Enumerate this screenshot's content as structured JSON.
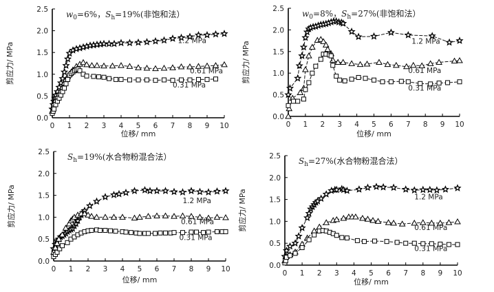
{
  "chart_data": [
    {
      "type": "line",
      "title": "w0=6%, Sh=19%(非饱和法)",
      "title_parts": {
        "var1": "w",
        "sub1": "0",
        "val1": "=6%，",
        "var2": "S",
        "sub2": "h",
        "val2": "=19%(非饱和法）"
      },
      "xlabel": "位移/ mm",
      "ylabel": "剪应力/ MPa",
      "xlim": [
        0,
        10
      ],
      "ylim": [
        0,
        2.5
      ],
      "xticks": [
        "0",
        "1",
        "2",
        "3",
        "4",
        "5",
        "6",
        "7",
        "8",
        "9",
        "10"
      ],
      "yticks": [
        "0.0",
        "0.5",
        "1.0",
        "1.5",
        "2.0",
        "2.5"
      ],
      "grid": false,
      "series": [
        {
          "name": "1.2 MPa",
          "marker": "star",
          "x": [
            0,
            0.05,
            0.1,
            0.15,
            0.2,
            0.3,
            0.4,
            0.5,
            0.6,
            0.7,
            0.8,
            0.9,
            1.0,
            1.2,
            1.4,
            1.6,
            1.8,
            2.0,
            2.2,
            2.4,
            2.6,
            2.8,
            3.0,
            3.3,
            3.6,
            4.0,
            4.5,
            5.0,
            5.5,
            6.0,
            6.5,
            7.0,
            7.5,
            8.0,
            8.5,
            9.0,
            9.5,
            10.0
          ],
          "y": [
            0.2,
            0.3,
            0.38,
            0.45,
            0.52,
            0.6,
            0.7,
            0.8,
            0.9,
            1.05,
            1.2,
            1.35,
            1.48,
            1.55,
            1.58,
            1.6,
            1.62,
            1.64,
            1.66,
            1.67,
            1.68,
            1.69,
            1.7,
            1.7,
            1.7,
            1.72,
            1.72,
            1.73,
            1.74,
            1.76,
            1.78,
            1.82,
            1.84,
            1.86,
            1.9,
            1.9,
            1.92,
            1.93
          ]
        },
        {
          "name": "0.61 MPa",
          "marker": "triangle",
          "x": [
            0,
            0.05,
            0.1,
            0.2,
            0.3,
            0.4,
            0.5,
            0.6,
            0.7,
            0.8,
            0.9,
            1.0,
            1.1,
            1.2,
            1.4,
            1.6,
            1.8,
            2.0,
            2.3,
            2.6,
            3.0,
            3.5,
            4.0,
            4.5,
            5.0,
            5.5,
            6.0,
            6.5,
            7.0,
            7.5,
            8.0,
            8.5,
            9.0,
            9.5,
            10.0
          ],
          "y": [
            0.15,
            0.25,
            0.32,
            0.4,
            0.48,
            0.55,
            0.62,
            0.7,
            0.8,
            0.88,
            0.95,
            1.0,
            1.05,
            1.1,
            1.18,
            1.23,
            1.27,
            1.22,
            1.2,
            1.2,
            1.19,
            1.19,
            1.2,
            1.18,
            1.15,
            1.14,
            1.13,
            1.14,
            1.15,
            1.17,
            1.17,
            1.18,
            1.19,
            1.2,
            1.22
          ]
        },
        {
          "name": "0.31 MPa",
          "marker": "square",
          "x": [
            0,
            0.05,
            0.1,
            0.2,
            0.3,
            0.4,
            0.5,
            0.6,
            0.7,
            0.8,
            0.9,
            1.0,
            1.1,
            1.2,
            1.3,
            1.4,
            1.5,
            1.6,
            1.8,
            2.0,
            2.4,
            2.7,
            3.0,
            3.3,
            3.7,
            4.0,
            4.5,
            5.0,
            5.5,
            6.0,
            6.5,
            7.0,
            7.5,
            8.0,
            8.5,
            9.0,
            9.5
          ],
          "y": [
            0.1,
            0.15,
            0.2,
            0.3,
            0.38,
            0.45,
            0.52,
            0.6,
            0.68,
            0.78,
            0.88,
            0.98,
            1.02,
            1.05,
            1.08,
            1.1,
            1.12,
            1.08,
            1.0,
            0.96,
            0.95,
            0.94,
            0.93,
            0.9,
            0.88,
            0.88,
            0.87,
            0.87,
            0.87,
            0.86,
            0.87,
            0.86,
            0.87,
            0.87,
            0.88,
            0.88,
            0.89
          ]
        }
      ],
      "annotations": [
        {
          "text": "1.2 MPa",
          "x": 7.3,
          "y": 1.72
        },
        {
          "text": "0.61 MPa",
          "x": 8.0,
          "y": 1.02
        },
        {
          "text": "0.31 MPa",
          "x": 7.0,
          "y": 0.7
        }
      ]
    },
    {
      "type": "line",
      "title": "w0=8%, Sh=27%(非饱和法)",
      "title_parts": {
        "var1": "w",
        "sub1": "0",
        "val1": "=8%，",
        "var2": "S",
        "sub2": "h",
        "val2": "=27%(非饱和法）"
      },
      "xlabel": "位移/ mm",
      "ylabel": "剪应力/ MPa",
      "xlim": [
        0,
        10
      ],
      "ylim": [
        0,
        2.5
      ],
      "xticks": [
        "0",
        "1",
        "2",
        "3",
        "4",
        "5",
        "6",
        "7",
        "8",
        "9",
        "10"
      ],
      "yticks": [
        "0.0",
        "0.5",
        "1.0",
        "1.5",
        "2.0",
        "2.5"
      ],
      "grid": false,
      "series": [
        {
          "name": "1.2 MPa",
          "marker": "star",
          "x": [
            0,
            0.1,
            0.55,
            0.65,
            0.8,
            0.9,
            1.0,
            1.1,
            1.2,
            1.3,
            1.45,
            1.6,
            1.75,
            1.9,
            2.05,
            2.2,
            2.35,
            2.5,
            2.65,
            2.8,
            2.95,
            3.1,
            3.2,
            3.7,
            4.1,
            5.0,
            6.0,
            7.0,
            8.4,
            9.4,
            10.0
          ],
          "y": [
            0.5,
            0.65,
            0.88,
            1.17,
            1.4,
            1.6,
            1.82,
            1.95,
            2.02,
            2.05,
            2.07,
            2.08,
            2.1,
            2.12,
            2.13,
            2.14,
            2.16,
            2.18,
            2.2,
            2.2,
            2.18,
            2.17,
            2.15,
            1.96,
            1.84,
            1.85,
            1.94,
            1.88,
            1.86,
            1.71,
            1.75
          ]
        },
        {
          "name": "0.61 MPa",
          "marker": "triangle",
          "x": [
            0,
            0.05,
            0.25,
            0.7,
            0.9,
            1.0,
            1.2,
            1.4,
            1.7,
            1.9,
            2.05,
            2.2,
            2.3,
            2.5,
            2.6,
            2.9,
            3.2,
            3.7,
            4.2,
            4.6,
            5.3,
            5.8,
            6.3,
            6.9,
            7.3,
            7.8,
            8.3,
            8.8,
            9.7,
            10.0
          ],
          "y": [
            0.0,
            0.18,
            0.42,
            0.55,
            0.65,
            1.08,
            1.4,
            1.6,
            1.76,
            1.78,
            1.73,
            1.65,
            1.55,
            1.45,
            1.3,
            1.25,
            1.25,
            1.22,
            1.2,
            1.21,
            1.25,
            1.2,
            1.18,
            1.15,
            1.18,
            1.17,
            1.22,
            1.25,
            1.28,
            1.29
          ]
        },
        {
          "name": "0.31 MPa",
          "marker": "square",
          "x": [
            0,
            0.3,
            0.55,
            0.9,
            1.0,
            1.2,
            1.4,
            1.6,
            1.9,
            2.05,
            2.2,
            2.4,
            2.5,
            2.6,
            2.8,
            3.0,
            3.3,
            3.7,
            4.1,
            4.5,
            5.0,
            5.5,
            6.0,
            6.6,
            7.0,
            7.7,
            8.3,
            8.8,
            9.3,
            10.0
          ],
          "y": [
            0.25,
            0.35,
            0.35,
            0.4,
            0.62,
            0.78,
            1.0,
            1.16,
            1.32,
            1.44,
            1.44,
            1.42,
            1.4,
            1.18,
            0.93,
            0.84,
            0.82,
            0.86,
            0.9,
            0.88,
            0.84,
            0.8,
            0.8,
            0.81,
            0.8,
            0.76,
            0.75,
            0.77,
            0.78,
            0.8
          ]
        }
      ],
      "annotations": [
        {
          "text": "1.2 MPa",
          "x": 7.2,
          "y": 1.68
        },
        {
          "text": "0.61 MPa",
          "x": 7.0,
          "y": 1.0
        },
        {
          "text": "0.31 MPa",
          "x": 7.0,
          "y": 0.6
        }
      ]
    },
    {
      "type": "line",
      "title": "Sh=19%(水合物粉混合法)",
      "title_parts": {
        "var1": "S",
        "sub1": "h",
        "val1": "=19%(水合物粉混合法）"
      },
      "xlabel": "位移/ mm",
      "ylabel": "剪应力/ MPa",
      "xlim": [
        0,
        10
      ],
      "ylim": [
        0,
        2.5
      ],
      "xticks": [
        "0",
        "1",
        "2",
        "3",
        "4",
        "5",
        "6",
        "7",
        "8",
        "9",
        "10"
      ],
      "yticks": [
        "0.0",
        "0.5",
        "1.0",
        "1.5",
        "2.0",
        "2.5"
      ],
      "grid": false,
      "series": [
        {
          "name": "1.2 MPa",
          "marker": "star",
          "x": [
            0,
            0.1,
            0.2,
            0.3,
            0.4,
            0.5,
            0.6,
            0.7,
            0.8,
            0.9,
            1.0,
            1.1,
            1.2,
            1.3,
            1.4,
            1.5,
            1.6,
            1.7,
            1.8,
            2.1,
            2.5,
            3.0,
            3.5,
            3.8,
            4.2,
            4.7,
            5.3,
            5.6,
            6.0,
            6.5,
            7.0,
            7.5,
            8.0,
            8.5,
            9.0,
            9.5,
            10.0
          ],
          "y": [
            0.28,
            0.38,
            0.45,
            0.5,
            0.55,
            0.57,
            0.6,
            0.63,
            0.67,
            0.7,
            0.72,
            0.74,
            0.8,
            0.85,
            0.92,
            1.0,
            1.05,
            1.1,
            1.15,
            1.26,
            1.36,
            1.46,
            1.51,
            1.53,
            1.56,
            1.6,
            1.62,
            1.6,
            1.6,
            1.6,
            1.58,
            1.57,
            1.6,
            1.58,
            1.57,
            1.59,
            1.6
          ]
        },
        {
          "name": "0.61 MPa",
          "marker": "triangle",
          "x": [
            0,
            0.1,
            0.2,
            0.3,
            0.5,
            0.7,
            0.9,
            1.0,
            1.1,
            1.2,
            1.4,
            1.6,
            1.8,
            2.0,
            2.2,
            2.5,
            3.0,
            3.5,
            4.0,
            4.7,
            5.0,
            5.5,
            6.0,
            6.5,
            7.0,
            7.5,
            8.0,
            8.5,
            9.0,
            9.5,
            10.0
          ],
          "y": [
            0.2,
            0.3,
            0.4,
            0.5,
            0.6,
            0.75,
            0.85,
            0.92,
            0.96,
            1.0,
            1.05,
            1.08,
            1.08,
            1.05,
            1.02,
            1.0,
            1.0,
            1.0,
            1.0,
            0.98,
            1.0,
            1.02,
            1.03,
            1.03,
            1.02,
            1.03,
            1.02,
            1.0,
            0.98,
            1.0,
            0.99
          ]
        },
        {
          "name": "0.31 MPa",
          "marker": "square",
          "x": [
            0,
            0.1,
            0.2,
            0.35,
            0.5,
            0.8,
            1.0,
            1.2,
            1.4,
            1.6,
            1.8,
            2.0,
            2.2,
            2.5,
            2.7,
            3.0,
            3.3,
            3.6,
            4.0,
            4.2,
            4.5,
            4.8,
            5.0,
            5.3,
            5.5,
            5.9,
            6.2,
            6.5,
            6.8,
            7.0,
            7.5,
            8.0,
            8.3,
            8.7,
            9.0,
            9.5,
            9.8,
            10.0
          ],
          "y": [
            0.1,
            0.15,
            0.2,
            0.28,
            0.35,
            0.42,
            0.5,
            0.55,
            0.6,
            0.64,
            0.67,
            0.69,
            0.7,
            0.71,
            0.7,
            0.7,
            0.69,
            0.68,
            0.67,
            0.66,
            0.65,
            0.64,
            0.63,
            0.63,
            0.63,
            0.63,
            0.64,
            0.64,
            0.64,
            0.65,
            0.65,
            0.66,
            0.66,
            0.65,
            0.66,
            0.67,
            0.67,
            0.67
          ]
        }
      ],
      "annotations": [
        {
          "text": "1.2 MPa",
          "x": 7.5,
          "y": 1.32
        },
        {
          "text": "0.61 MPa",
          "x": 7.4,
          "y": 0.84
        },
        {
          "text": "0.31 MPa",
          "x": 7.3,
          "y": 0.48
        }
      ]
    },
    {
      "type": "line",
      "title": "Sh=27%(水合物粉混合法)",
      "title_parts": {
        "var1": "S",
        "sub1": "h",
        "val1": "=27%(水合物粉混合法）"
      },
      "xlabel": "位移/ mm",
      "ylabel": "剪应力/ MPa",
      "xlim": [
        0,
        10
      ],
      "ylim": [
        0,
        2.5
      ],
      "xticks": [
        "0",
        "1",
        "2",
        "3",
        "4",
        "5",
        "6",
        "7",
        "8",
        "9",
        "10"
      ],
      "yticks": [
        "0.0",
        "0.5",
        "1.0",
        "1.5",
        "2.0",
        "2.5"
      ],
      "grid": false,
      "series": [
        {
          "name": "1.2 MPa",
          "marker": "star",
          "x": [
            0,
            0.1,
            0.3,
            0.6,
            0.8,
            1.0,
            1.3,
            1.4,
            1.5,
            1.6,
            1.7,
            1.8,
            1.9,
            2.1,
            2.4,
            2.7,
            2.9,
            3.0,
            3.3,
            3.4,
            3.6,
            4.3,
            4.8,
            5.3,
            5.7,
            6.3,
            7.0,
            7.5,
            8.0,
            8.4,
            8.8,
            9.3,
            10.0
          ],
          "y": [
            0.2,
            0.33,
            0.43,
            0.5,
            0.66,
            0.85,
            1.08,
            1.18,
            1.28,
            1.33,
            1.38,
            1.43,
            1.46,
            1.52,
            1.62,
            1.7,
            1.72,
            1.72,
            1.74,
            1.72,
            1.7,
            1.73,
            1.77,
            1.79,
            1.78,
            1.77,
            1.73,
            1.71,
            1.72,
            1.72,
            1.71,
            1.73,
            1.76
          ]
        },
        {
          "name": "0.61 MPa",
          "marker": "triangle",
          "x": [
            0,
            0.1,
            0.3,
            0.6,
            1.0,
            1.3,
            1.7,
            2.0,
            2.4,
            2.8,
            3.0,
            3.4,
            3.7,
            3.9,
            4.1,
            4.5,
            4.8,
            5.1,
            5.4,
            6.0,
            6.3,
            6.8,
            7.5,
            8.0,
            8.5,
            9.0,
            9.5,
            10.0
          ],
          "y": [
            0.1,
            0.2,
            0.24,
            0.3,
            0.48,
            0.62,
            0.78,
            0.87,
            0.97,
            1.02,
            1.04,
            1.07,
            1.1,
            1.1,
            1.1,
            1.07,
            1.05,
            1.02,
            1.0,
            0.97,
            0.96,
            0.94,
            0.96,
            0.97,
            0.96,
            0.96,
            0.97,
            0.99
          ]
        },
        {
          "name": "0.31 MPa",
          "marker": "square",
          "x": [
            0,
            0.05,
            0.1,
            0.3,
            0.6,
            1.0,
            1.4,
            1.7,
            2.0,
            2.2,
            2.4,
            2.6,
            2.8,
            3.0,
            3.3,
            3.6,
            4.2,
            4.6,
            5.2,
            5.9,
            6.5,
            7.0,
            7.5,
            8.0,
            8.5,
            9.0,
            9.5,
            10.0
          ],
          "y": [
            0.05,
            0.1,
            0.18,
            0.22,
            0.27,
            0.4,
            0.58,
            0.69,
            0.78,
            0.79,
            0.78,
            0.75,
            0.72,
            0.68,
            0.63,
            0.62,
            0.56,
            0.54,
            0.55,
            0.54,
            0.52,
            0.5,
            0.5,
            0.49,
            0.49,
            0.48,
            0.47,
            0.47
          ]
        }
      ],
      "annotations": [
        {
          "text": "1.2 MPa",
          "x": 7.5,
          "y": 1.5
        },
        {
          "text": "0.61 MPa",
          "x": 7.5,
          "y": 0.8
        },
        {
          "text": "0.31 MPa",
          "x": 7.5,
          "y": 0.32
        }
      ]
    }
  ]
}
